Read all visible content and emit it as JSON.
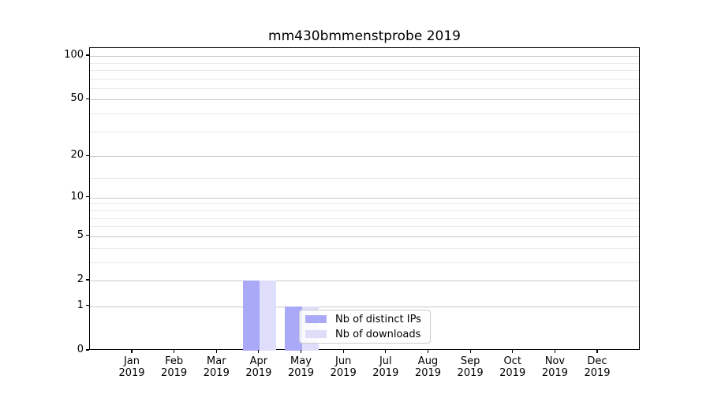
{
  "title": "mm430bmmenstprobe 2019",
  "chart_data": {
    "type": "bar",
    "title": "mm430bmmenstprobe 2019",
    "categories": [
      {
        "month": "Jan",
        "year": "2019"
      },
      {
        "month": "Feb",
        "year": "2019"
      },
      {
        "month": "Mar",
        "year": "2019"
      },
      {
        "month": "Apr",
        "year": "2019"
      },
      {
        "month": "May",
        "year": "2019"
      },
      {
        "month": "Jun",
        "year": "2019"
      },
      {
        "month": "Jul",
        "year": "2019"
      },
      {
        "month": "Aug",
        "year": "2019"
      },
      {
        "month": "Sep",
        "year": "2019"
      },
      {
        "month": "Oct",
        "year": "2019"
      },
      {
        "month": "Nov",
        "year": "2019"
      },
      {
        "month": "Dec",
        "year": "2019"
      }
    ],
    "series": [
      {
        "name": "Nb of distinct IPs",
        "color": "#a9a9f7",
        "values": [
          0,
          0,
          0,
          2,
          1,
          0,
          0,
          0,
          0,
          0,
          0,
          0
        ]
      },
      {
        "name": "Nb of downloads",
        "color": "#dedefb",
        "values": [
          0,
          0,
          0,
          2,
          1,
          0,
          0,
          0,
          0,
          0,
          0,
          0
        ]
      }
    ],
    "xlabel": "",
    "ylabel": "",
    "y_ticks": [
      0,
      1,
      2,
      5,
      10,
      20,
      50,
      100
    ],
    "minor_gridlines": [
      3,
      4,
      6,
      7,
      8,
      9,
      14,
      30,
      40,
      60,
      70,
      80,
      90
    ],
    "scale": "log1p",
    "ylim": [
      0,
      113.3
    ],
    "grid": "major+minor",
    "legend_position": "inside lower-center"
  },
  "colors": {
    "bar_distinct_ips": "#a9a9f7",
    "bar_downloads": "#dedefb",
    "grid_major": "#c9c9c9",
    "grid_minor": "#e9e9e9",
    "axis": "#000000",
    "legend_border": "#cccccc"
  }
}
